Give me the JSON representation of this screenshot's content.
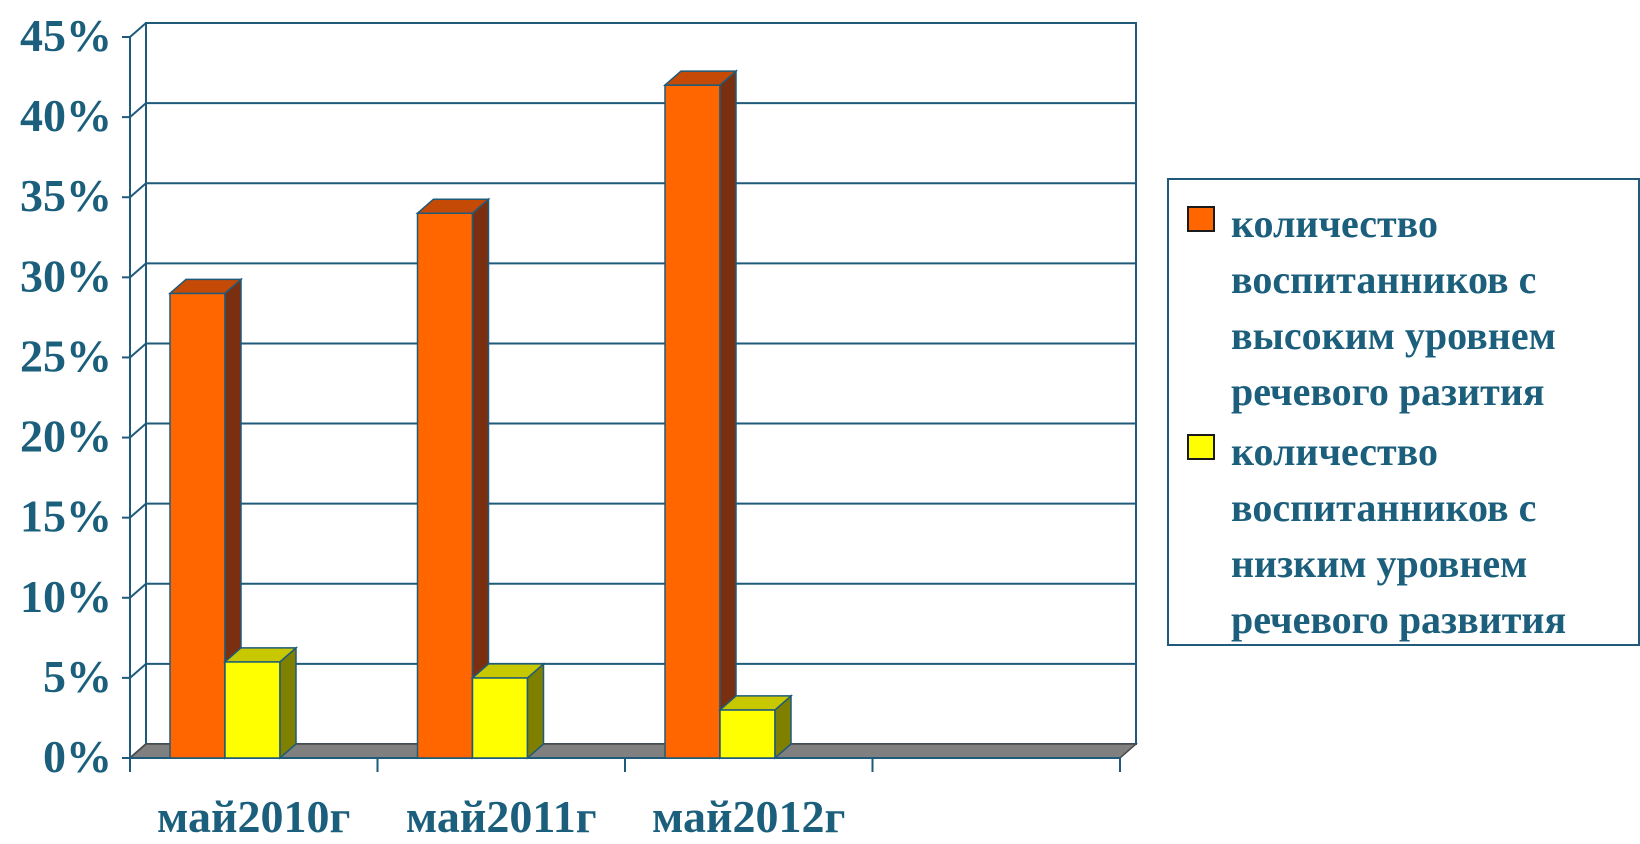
{
  "chart_data": {
    "type": "bar",
    "categories": [
      "май2010г",
      "май2011г",
      "май2012г",
      ""
    ],
    "series": [
      {
        "name": "количество\nвоспитанников с\nвысоким уровнем\nречевого разития",
        "values": [
          29,
          34,
          42,
          null
        ],
        "color": "#ff6600",
        "side_color": "#7a3010",
        "top_color": "#c44a05"
      },
      {
        "name": "количество\nвоспитанников с\nнизким уровнем\nречевого развития",
        "values": [
          6,
          5,
          3,
          null
        ],
        "color": "#ffff00",
        "side_color": "#7f7f00",
        "top_color": "#c8c800"
      }
    ],
    "y_ticks": [
      "0%",
      "5%",
      "10%",
      "15%",
      "20%",
      "25%",
      "30%",
      "35%",
      "40%",
      "45%"
    ],
    "ylim": [
      0,
      45
    ],
    "y_unit": "%",
    "grid": true,
    "legend_position": "right",
    "title": "",
    "xlabel": "",
    "ylabel": "",
    "colors": {
      "axis_text": "#1b5f7c",
      "grid": "#1f5a7a",
      "floor": "#808080"
    }
  }
}
